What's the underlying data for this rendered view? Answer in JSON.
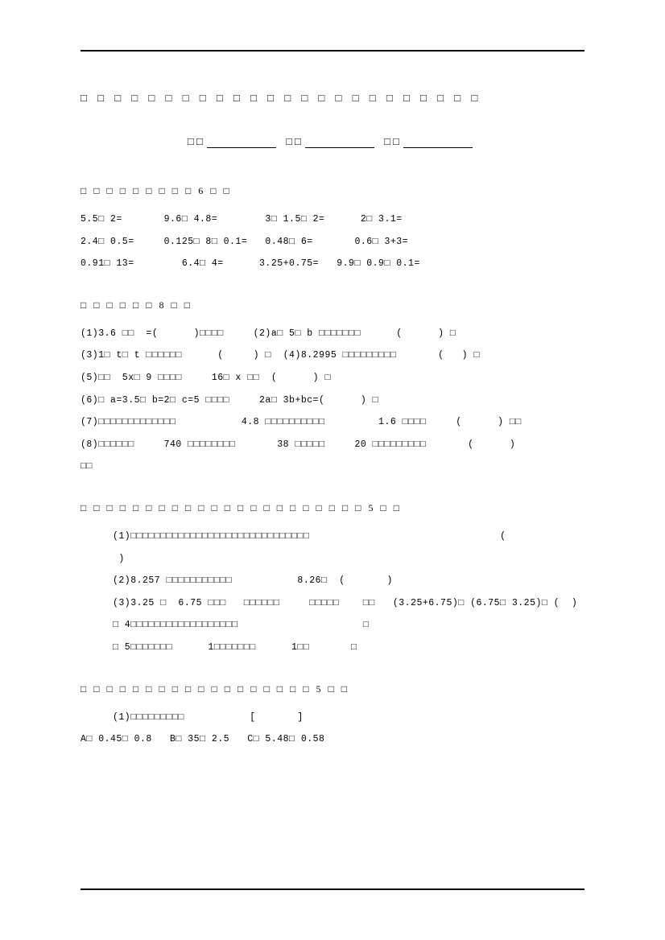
{
  "title": "□ □ □ □ □ □ □ □ □ □ □ □ □ □ □ □ □ □ □ □ □ □ □ □",
  "info": {
    "l1": "□□",
    "l2": "□□",
    "l3": "□□"
  },
  "s1": {
    "head": "□ □ □ □ □ □ □ □ □       6 □ □",
    "r1": "5.5□ 2=       9.6□ 4.8=        3□ 1.5□ 2=      2□ 3.1=",
    "r2": "2.4□ 0.5=     0.125□ 8□ 0.1=   0.48□ 6=       0.6□ 3+3=",
    "r3": "0.91□ 13=        6.4□ 4=      3.25+0.75=   9.9□ 0.9□ 0.1="
  },
  "s2": {
    "head": "□ □ □ □ □ □      8 □ □",
    "r1": "(1)3.6 □□  =(      )□□□□     (2)a□ 5□ b □□□□□□□      (      ) □",
    "r2": "(3)1□ t□ t □□□□□□      (     ) □  (4)8.2995 □□□□□□□□□       (   ) □",
    "r3": "(5)□□  5x□ 9 □□□□     16□ x □□  (      ) □",
    "r4": "(6)□ a=3.5□ b=2□ c=5 □□□□     2a□ 3b+bc=(      ) □",
    "r5": "(7)□□□□□□□□□□□□□           4.8 □□□□□□□□□□         1.6 □□□□     (      ) □□",
    "r6": "(8)□□□□□□     740 □□□□□□□□       38 □□□□□     20 □□□□□□□□□       (      )",
    "r7": "□□"
  },
  "s3": {
    "head": "□ □ □ □ □ □ □ □ □ □ □ □ □ □ □ □ □ □ □ □ □ □                            5 □ □",
    "r1": "(1)□□□□□□□□□□□□□□□□□□□□□□□□□□□□□□                                (",
    "r2": " )",
    "r3": "(2)8.257 □□□□□□□□□□□           8.26□  (       )",
    "r4": "(3)3.25 □  6.75 □□□   □□□□□□     □□□□□    □□   (3.25+6.75)□ (6.75□ 3.25)□ (  )",
    "r5": "□ 4□□□□□□□□□□□□□□□□□□                     □",
    "r6": "□ 5□□□□□□□      1□□□□□□□      1□□       □"
  },
  "s4": {
    "head": "□ □ □ □ □ □ □ □ □ □ □ □ □ □ □ □ □ □                       5 □ □",
    "r1": "(1)□□□□□□□□□           [       ]",
    "r2": "A□ 0.45□ 0.8   B□ 35□ 2.5   C□ 5.48□ 0.58"
  }
}
